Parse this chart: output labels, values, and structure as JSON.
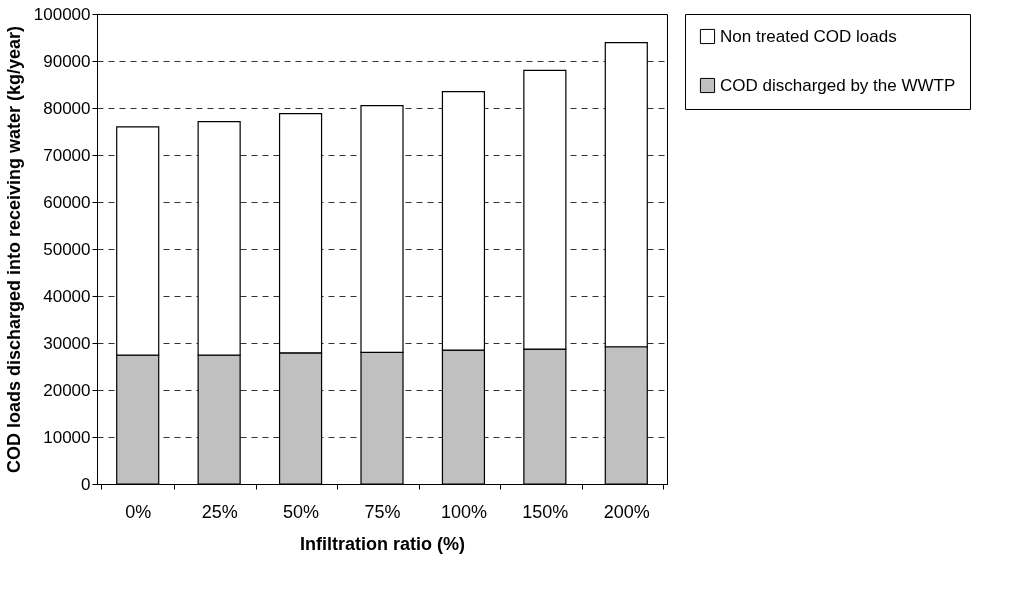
{
  "chart_data": {
    "type": "bar",
    "stacked": true,
    "xlabel": "Infiltration ratio (%)",
    "ylabel": "COD loads discharged into receiving water (kg/year)",
    "categories": [
      "0%",
      "25%",
      "50%",
      "75%",
      "100%",
      "150%",
      "200%"
    ],
    "series": [
      {
        "name": "COD discharged by the WWTP",
        "color": "#c0c0c0",
        "values": [
          27400,
          27400,
          27900,
          28000,
          28500,
          28700,
          29200
        ]
      },
      {
        "name": "Non treated COD loads",
        "color": "#ffffff",
        "values": [
          48600,
          49700,
          50900,
          52500,
          55000,
          59300,
          64700
        ]
      }
    ],
    "ylim": [
      0,
      100000
    ],
    "yticks": [
      0,
      10000,
      20000,
      30000,
      40000,
      50000,
      60000,
      70000,
      80000,
      90000,
      100000
    ],
    "grid": "y",
    "legend": "right"
  }
}
